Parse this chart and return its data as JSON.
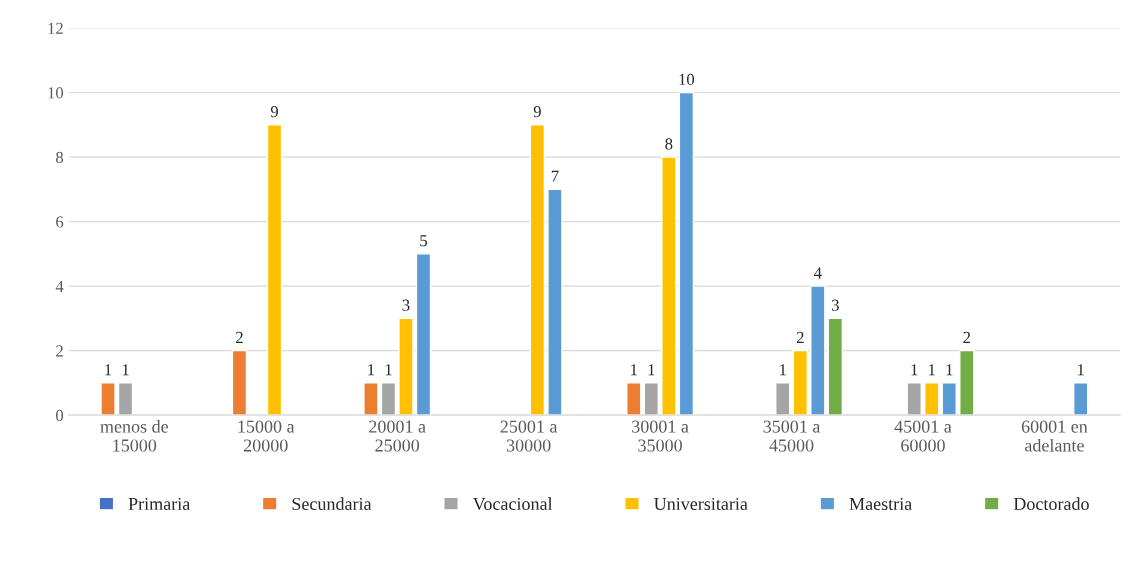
{
  "chart_data": {
    "type": "bar",
    "categories": [
      "menos de\n15000",
      "15000 a\n20000",
      "20001 a\n25000",
      "25001 a\n30000",
      "30001 a\n35000",
      "35001 a\n45000",
      "45001 a\n60000",
      "60001 en\nadelante"
    ],
    "series": [
      {
        "name": "Primaria",
        "color": "#4472c4",
        "values": [
          null,
          null,
          null,
          null,
          null,
          null,
          null,
          null
        ]
      },
      {
        "name": "Secundaria",
        "color": "#ed7d31",
        "values": [
          1,
          2,
          1,
          null,
          1,
          null,
          null,
          null
        ]
      },
      {
        "name": "Vocacional",
        "color": "#a5a5a5",
        "values": [
          1,
          null,
          1,
          null,
          1,
          1,
          1,
          null
        ]
      },
      {
        "name": "Universitaria",
        "color": "#ffc000",
        "values": [
          null,
          9,
          3,
          9,
          8,
          2,
          1,
          null
        ]
      },
      {
        "name": "Maestria",
        "color": "#5b9bd5",
        "values": [
          null,
          null,
          5,
          7,
          10,
          4,
          1,
          1
        ]
      },
      {
        "name": "Doctorado",
        "color": "#70ad47",
        "values": [
          null,
          null,
          null,
          null,
          null,
          3,
          2,
          null
        ]
      }
    ],
    "ylim": [
      0,
      12
    ],
    "yticks": [
      0,
      2,
      4,
      6,
      8,
      10,
      12
    ],
    "grid": "y",
    "legend": "bottom",
    "data_labels": true
  }
}
